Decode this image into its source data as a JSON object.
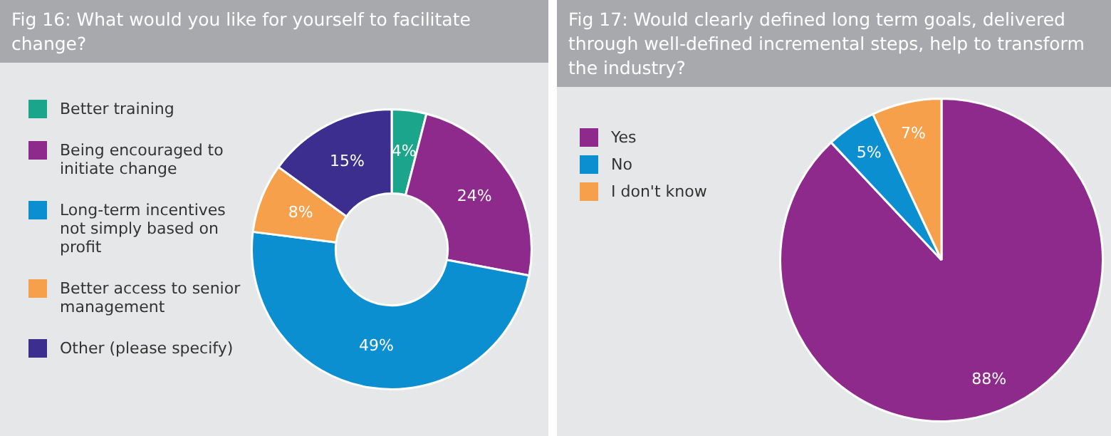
{
  "chart_data": [
    {
      "type": "donut",
      "title": "Fig 16: What would you like for yourself to facilitate change?",
      "categories": [
        "Better training",
        "Being encouraged to initiate change",
        "Long-term incentives not simply based on profit",
        "Better access to senior management",
        "Other (please specify)"
      ],
      "values": [
        4,
        24,
        49,
        8,
        15
      ],
      "colors": [
        "#1ba58b",
        "#8d2a8c",
        "#0b8fd1",
        "#f6a04c",
        "#3b2e8e"
      ],
      "value_labels": [
        "4%",
        "24%",
        "49%",
        "8%",
        "15%"
      ],
      "legend": "left"
    },
    {
      "type": "pie",
      "title": "Fig 17: Would clearly defined long term goals, delivered through well-defined incremental steps, help to transform the industry?",
      "categories": [
        "Yes",
        "No",
        "I don't know"
      ],
      "values": [
        88,
        5,
        7
      ],
      "colors": [
        "#8d2a8c",
        "#0b8fd1",
        "#f6a04c"
      ],
      "value_labels": [
        "88%",
        "5%",
        "7%"
      ],
      "legend": "top left"
    }
  ]
}
